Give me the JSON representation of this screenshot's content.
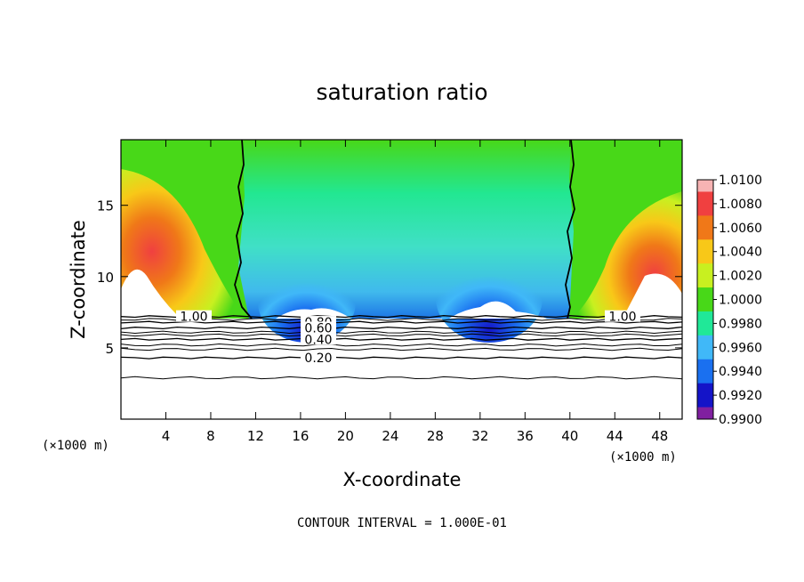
{
  "chart_data": {
    "type": "heatmap",
    "title": "saturation ratio",
    "xlabel": "X-coordinate",
    "ylabel": "Z-coordinate",
    "x_unit": "(×1000 m)",
    "x_ticks": [
      4,
      8,
      12,
      16,
      20,
      24,
      28,
      32,
      36,
      40,
      44,
      48
    ],
    "y_ticks": [
      5,
      10,
      15
    ],
    "xlim": [
      0,
      50
    ],
    "ylim": [
      0,
      19.6
    ],
    "colorbar": {
      "ticks": [
        "1.0100",
        "1.0080",
        "1.0060",
        "1.0040",
        "1.0020",
        "1.0000",
        "0.9980",
        "0.9960",
        "0.9940",
        "0.9920",
        "0.9900"
      ],
      "colors": [
        "#f7b3b3",
        "#f04040",
        "#f07818",
        "#f8c818",
        "#c8f020",
        "#48d818",
        "#20e898",
        "#40b8f8",
        "#1a70f0",
        "#1414c8",
        "#8020a0"
      ]
    },
    "contour_lines": [
      {
        "label": "1.00",
        "z": 7.2
      },
      {
        "label": "0.80",
        "z": 6.8
      },
      {
        "label": "0.60",
        "z": 6.4
      },
      {
        "label": "0.40",
        "z": 5.6
      },
      {
        "label": "0.20",
        "z": 4.3
      }
    ],
    "contour_interval_text": "CONTOUR INTERVAL = 1.000E-01"
  }
}
